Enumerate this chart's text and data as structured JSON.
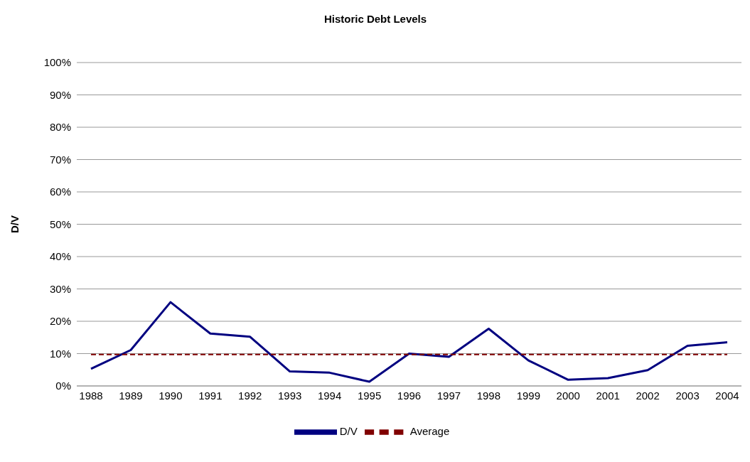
{
  "chart_data": {
    "type": "line",
    "title": "Historic Debt Levels",
    "ylabel": "D/V",
    "categories": [
      "1988",
      "1989",
      "1990",
      "1991",
      "1992",
      "1993",
      "1994",
      "1995",
      "1996",
      "1997",
      "1998",
      "1999",
      "2000",
      "2001",
      "2002",
      "2003",
      "2004"
    ],
    "series": [
      {
        "name": "D/V",
        "color": "#000080",
        "line_style": "solid",
        "values": [
          5.3,
          11.1,
          25.9,
          16.2,
          15.2,
          4.5,
          4.1,
          1.3,
          10.0,
          9.0,
          17.7,
          7.9,
          1.9,
          2.4,
          4.9,
          12.4,
          13.5
        ]
      },
      {
        "name": "Average",
        "color": "#800000",
        "line_style": "dashed",
        "values": [
          9.7,
          9.7,
          9.7,
          9.7,
          9.7,
          9.7,
          9.7,
          9.7,
          9.7,
          9.7,
          9.7,
          9.7,
          9.7,
          9.7,
          9.7,
          9.7,
          9.7
        ]
      }
    ],
    "ylim": [
      0,
      100
    ],
    "yticks": [
      {
        "value": 0,
        "label": "0%"
      },
      {
        "value": 10,
        "label": "10%"
      },
      {
        "value": 20,
        "label": "20%"
      },
      {
        "value": 30,
        "label": "30%"
      },
      {
        "value": 40,
        "label": "40%"
      },
      {
        "value": 50,
        "label": "50%"
      },
      {
        "value": 60,
        "label": "60%"
      },
      {
        "value": 70,
        "label": "70%"
      },
      {
        "value": 80,
        "label": "80%"
      },
      {
        "value": 90,
        "label": "90%"
      },
      {
        "value": 100,
        "label": "100%"
      }
    ],
    "grid": "y",
    "legend": "bottom",
    "marker": "none"
  }
}
